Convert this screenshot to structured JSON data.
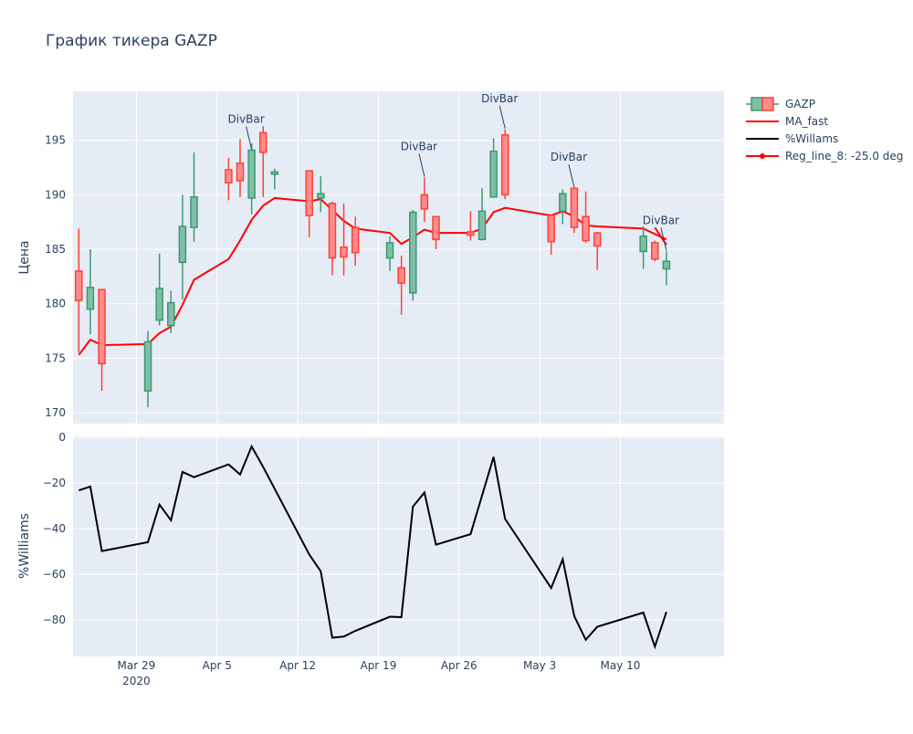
{
  "chart_data": {
    "type": "candlestick",
    "title": "График тикера GAZP",
    "price_panel": {
      "ylabel": "Цена",
      "ylim": [
        169,
        199.5
      ],
      "yticks": [
        170,
        175,
        180,
        185,
        190,
        195
      ],
      "grid": true,
      "candles": [
        {
          "date": "2020-03-24",
          "open": 183.0,
          "high": 186.9,
          "low": 175.5,
          "close": 180.3
        },
        {
          "date": "2020-03-25",
          "open": 179.5,
          "high": 185.0,
          "low": 177.2,
          "close": 181.5
        },
        {
          "date": "2020-03-26",
          "open": 181.3,
          "high": 181.3,
          "low": 172.0,
          "close": 174.5
        },
        {
          "date": "2020-03-30",
          "open": 172.0,
          "high": 177.5,
          "low": 170.5,
          "close": 176.5
        },
        {
          "date": "2020-03-31",
          "open": 178.5,
          "high": 184.6,
          "low": 178.0,
          "close": 181.4
        },
        {
          "date": "2020-04-01",
          "open": 178.0,
          "high": 181.2,
          "low": 177.3,
          "close": 180.1
        },
        {
          "date": "2020-04-02",
          "open": 183.8,
          "high": 190.0,
          "low": 180.4,
          "close": 187.1
        },
        {
          "date": "2020-04-03",
          "open": 187.0,
          "high": 193.9,
          "low": 185.7,
          "close": 189.8
        },
        {
          "date": "2020-04-06",
          "open": 192.3,
          "high": 193.4,
          "low": 189.5,
          "close": 191.1
        },
        {
          "date": "2020-04-07",
          "open": 192.9,
          "high": 195.1,
          "low": 189.8,
          "close": 191.3
        },
        {
          "date": "2020-04-08",
          "open": 189.7,
          "high": 194.7,
          "low": 188.2,
          "close": 194.1
        },
        {
          "date": "2020-04-09",
          "open": 195.7,
          "high": 196.3,
          "low": 189.8,
          "close": 193.9
        },
        {
          "date": "2020-04-10",
          "open": 191.9,
          "high": 192.4,
          "low": 190.5,
          "close": 192.1
        },
        {
          "date": "2020-04-13",
          "open": 192.2,
          "high": 192.2,
          "low": 186.1,
          "close": 188.1
        },
        {
          "date": "2020-04-14",
          "open": 189.7,
          "high": 191.7,
          "low": 188.4,
          "close": 190.1
        },
        {
          "date": "2020-04-15",
          "open": 189.2,
          "high": 189.4,
          "low": 182.6,
          "close": 184.2
        },
        {
          "date": "2020-04-16",
          "open": 185.2,
          "high": 189.2,
          "low": 182.6,
          "close": 184.3
        },
        {
          "date": "2020-04-17",
          "open": 187.0,
          "high": 188.0,
          "low": 183.5,
          "close": 184.7
        },
        {
          "date": "2020-04-20",
          "open": 184.2,
          "high": 186.2,
          "low": 183.0,
          "close": 185.6
        },
        {
          "date": "2020-04-21",
          "open": 183.3,
          "high": 184.4,
          "low": 179.0,
          "close": 181.9
        },
        {
          "date": "2020-04-22",
          "open": 181.0,
          "high": 188.6,
          "low": 180.3,
          "close": 188.4
        },
        {
          "date": "2020-04-23",
          "open": 190.0,
          "high": 191.6,
          "low": 187.5,
          "close": 188.7
        },
        {
          "date": "2020-04-24",
          "open": 188.0,
          "high": 188.0,
          "low": 185.0,
          "close": 185.9
        },
        {
          "date": "2020-04-27",
          "open": 186.6,
          "high": 188.5,
          "low": 185.8,
          "close": 186.3
        },
        {
          "date": "2020-04-28",
          "open": 185.9,
          "high": 190.6,
          "low": 185.8,
          "close": 188.5
        },
        {
          "date": "2020-04-29",
          "open": 189.8,
          "high": 195.2,
          "low": 189.8,
          "close": 194.0
        },
        {
          "date": "2020-04-30",
          "open": 195.5,
          "high": 196.0,
          "low": 189.6,
          "close": 190.0
        },
        {
          "date": "2020-05-04",
          "open": 188.1,
          "high": 188.2,
          "low": 184.5,
          "close": 185.7
        },
        {
          "date": "2020-05-05",
          "open": 188.5,
          "high": 190.5,
          "low": 187.3,
          "close": 190.1
        },
        {
          "date": "2020-05-06",
          "open": 190.6,
          "high": 190.6,
          "low": 186.5,
          "close": 187.0
        },
        {
          "date": "2020-05-07",
          "open": 188.0,
          "high": 190.3,
          "low": 185.6,
          "close": 185.8
        },
        {
          "date": "2020-05-08",
          "open": 186.5,
          "high": 186.6,
          "low": 183.1,
          "close": 185.3
        },
        {
          "date": "2020-05-12",
          "open": 184.8,
          "high": 187.1,
          "low": 183.2,
          "close": 186.2
        },
        {
          "date": "2020-05-13",
          "open": 185.6,
          "high": 185.8,
          "low": 183.9,
          "close": 184.1
        },
        {
          "date": "2020-05-14",
          "open": 183.2,
          "high": 184.8,
          "low": 181.7,
          "close": 183.9
        }
      ],
      "ma_fast": [
        [
          "2020-03-24",
          175.3
        ],
        [
          "2020-03-25",
          176.7
        ],
        [
          "2020-03-26",
          176.2
        ],
        [
          "2020-03-30",
          176.3
        ],
        [
          "2020-03-31",
          177.3
        ],
        [
          "2020-04-01",
          177.9
        ],
        [
          "2020-04-02",
          179.9
        ],
        [
          "2020-04-03",
          182.2
        ],
        [
          "2020-04-06",
          184.1
        ],
        [
          "2020-04-07",
          185.8
        ],
        [
          "2020-04-08",
          187.7
        ],
        [
          "2020-04-09",
          189.0
        ],
        [
          "2020-04-10",
          189.7
        ],
        [
          "2020-04-13",
          189.4
        ],
        [
          "2020-04-14",
          189.6
        ],
        [
          "2020-04-15",
          188.6
        ],
        [
          "2020-04-16",
          187.6
        ],
        [
          "2020-04-17",
          186.9
        ],
        [
          "2020-04-20",
          186.5
        ],
        [
          "2020-04-21",
          185.5
        ],
        [
          "2020-04-22",
          186.1
        ],
        [
          "2020-04-23",
          186.8
        ],
        [
          "2020-04-24",
          186.5
        ],
        [
          "2020-04-27",
          186.5
        ],
        [
          "2020-04-28",
          186.9
        ],
        [
          "2020-04-29",
          188.4
        ],
        [
          "2020-04-30",
          188.8
        ],
        [
          "2020-05-04",
          188.1
        ],
        [
          "2020-05-05",
          188.5
        ],
        [
          "2020-05-06",
          188.0
        ],
        [
          "2020-05-07",
          187.2
        ],
        [
          "2020-05-08",
          187.1
        ],
        [
          "2020-05-12",
          186.9
        ],
        [
          "2020-05-13",
          186.4
        ],
        [
          "2020-05-14",
          185.9
        ]
      ],
      "reg_line": [
        [
          "2020-05-13",
          187.0
        ],
        [
          "2020-05-14",
          185.4
        ]
      ],
      "annotations": [
        {
          "text": "DivBar",
          "date": "2020-04-08",
          "price": 194.1
        },
        {
          "text": "DivBar",
          "date": "2020-04-23",
          "price": 191.6
        },
        {
          "text": "DivBar",
          "date": "2020-04-30",
          "price": 196.0
        },
        {
          "text": "DivBar",
          "date": "2020-05-06",
          "price": 190.6
        },
        {
          "text": "DivBar",
          "date": "2020-05-14",
          "price": 184.8
        }
      ]
    },
    "williams_panel": {
      "ylabel": "%Williams",
      "ylim": [
        -96,
        0.5
      ],
      "yticks": [
        0,
        -20,
        -40,
        -60,
        -80
      ],
      "grid": true,
      "values": [
        [
          "2020-03-24",
          -23.2
        ],
        [
          "2020-03-25",
          -21.5
        ],
        [
          "2020-03-26",
          -49.8
        ],
        [
          "2020-03-30",
          -45.9
        ],
        [
          "2020-03-31",
          -29.4
        ],
        [
          "2020-04-01",
          -36.3
        ],
        [
          "2020-04-02",
          -15.1
        ],
        [
          "2020-04-03",
          -17.4
        ],
        [
          "2020-04-06",
          -11.8
        ],
        [
          "2020-04-07",
          -16.2
        ],
        [
          "2020-04-08",
          -3.9
        ],
        [
          "2020-04-09",
          -12.9
        ],
        [
          "2020-04-13",
          -51.3
        ],
        [
          "2020-04-14",
          -58.7
        ],
        [
          "2020-04-15",
          -87.8
        ],
        [
          "2020-04-16",
          -87.3
        ],
        [
          "2020-04-17",
          -84.8
        ],
        [
          "2020-04-20",
          -78.6
        ],
        [
          "2020-04-21",
          -78.8
        ],
        [
          "2020-04-22",
          -30.3
        ],
        [
          "2020-04-23",
          -24.1
        ],
        [
          "2020-04-24",
          -47.0
        ],
        [
          "2020-04-27",
          -42.4
        ],
        [
          "2020-04-29",
          -8.5
        ],
        [
          "2020-04-30",
          -35.7
        ],
        [
          "2020-05-04",
          -66.0
        ],
        [
          "2020-05-05",
          -53.4
        ],
        [
          "2020-05-06",
          -78.3
        ],
        [
          "2020-05-07",
          -88.7
        ],
        [
          "2020-05-08",
          -83.0
        ],
        [
          "2020-05-12",
          -76.8
        ],
        [
          "2020-05-13",
          -91.7
        ],
        [
          "2020-05-14",
          -76.5
        ]
      ]
    },
    "x_axis": {
      "range": [
        "2020-03-23T12:00",
        "2020-05-19"
      ],
      "ticks": [
        {
          "date": "2020-03-29",
          "label": "Mar 29",
          "label2": "2020"
        },
        {
          "date": "2020-04-05",
          "label": "Apr 5",
          "label2": ""
        },
        {
          "date": "2020-04-12",
          "label": "Apr 12",
          "label2": ""
        },
        {
          "date": "2020-04-19",
          "label": "Apr 19",
          "label2": ""
        },
        {
          "date": "2020-04-26",
          "label": "Apr 26",
          "label2": ""
        },
        {
          "date": "2020-05-03",
          "label": "May 3",
          "label2": ""
        },
        {
          "date": "2020-05-10",
          "label": "May 10",
          "label2": ""
        }
      ]
    },
    "legend": {
      "placement": "top-right",
      "entries": [
        {
          "name": "GAZP",
          "kind": "candle"
        },
        {
          "name": "MA_fast",
          "kind": "line",
          "color": "#ff0000"
        },
        {
          "name": "%Willams",
          "kind": "line",
          "color": "#000000"
        },
        {
          "name": "Reg_line_8: -25.0 deg",
          "kind": "line-marker",
          "color": "#ff0000"
        }
      ]
    },
    "colors": {
      "up_fill": "#7fbfa5",
      "up_line": "#3d9970",
      "down_fill": "#ff8c8c",
      "down_line": "#ff4136",
      "ma_fast": "#ff0000",
      "williams": "#000000",
      "plot_bg": "#e5ecf6",
      "text": "#2a3f5f"
    }
  }
}
